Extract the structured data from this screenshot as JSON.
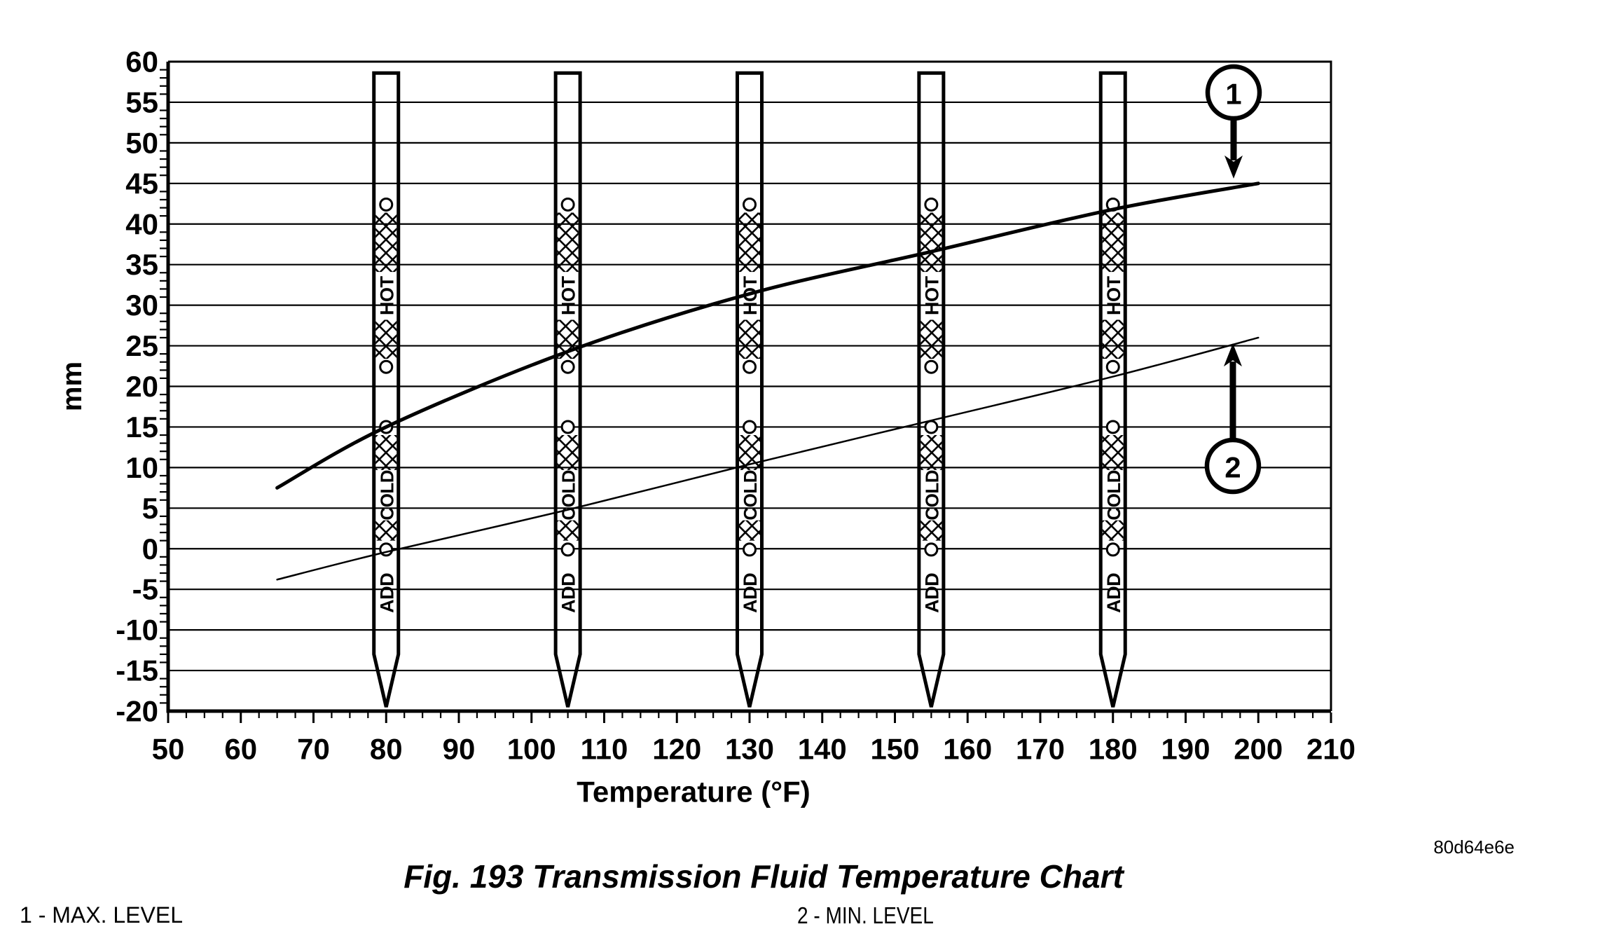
{
  "figure": {
    "caption": "Fig. 193 Transmission Fluid Temperature Chart",
    "reference_code": "80d64e6e",
    "legend": {
      "max_label": "1 - MAX. LEVEL",
      "min_label": "2 - MIN. LEVEL"
    }
  },
  "colors": {
    "ink": "#000000",
    "background": "#ffffff"
  },
  "chart_data": {
    "type": "line",
    "title": "Fig. 193 Transmission Fluid Temperature Chart",
    "xlabel": "Temperature (°F)",
    "ylabel": "mm",
    "xlim": [
      50,
      210
    ],
    "ylim": [
      -20,
      60
    ],
    "x_tick_step": 10,
    "x_minor_tick_step": 2.5,
    "y_tick_step": 5,
    "y_minor_tick_step": 1,
    "grid": "horizontal-only",
    "legend_position": "below",
    "x_tick_labels": [
      "50",
      "60",
      "70",
      "80",
      "90",
      "100",
      "110",
      "120",
      "130",
      "140",
      "150",
      "160",
      "170",
      "180",
      "190",
      "200",
      "210"
    ],
    "y_tick_labels": [
      "-20",
      "-15",
      "-10",
      "-5",
      "0",
      "5",
      "10",
      "15",
      "20",
      "25",
      "30",
      "35",
      "40",
      "45",
      "50",
      "55",
      "60"
    ],
    "series": [
      {
        "name": "MAX. LEVEL",
        "callout": "1",
        "style": "thick",
        "stroke_width": 5,
        "points": [
          [
            65,
            7.5
          ],
          [
            80,
            15
          ],
          [
            105,
            24.3
          ],
          [
            130,
            31.4
          ],
          [
            155,
            36.6
          ],
          [
            180,
            41.8
          ],
          [
            200,
            45
          ]
        ]
      },
      {
        "name": "MIN. LEVEL",
        "callout": "2",
        "style": "thin",
        "stroke_width": 2.5,
        "points": [
          [
            65,
            -3.8
          ],
          [
            80,
            -0.4
          ],
          [
            105,
            4.8
          ],
          [
            130,
            10.4
          ],
          [
            155,
            15.8
          ],
          [
            180,
            21.2
          ],
          [
            200,
            26
          ]
        ]
      }
    ],
    "callouts": [
      {
        "label": "1",
        "circle_at": [
          196.6,
          56.2
        ],
        "arrow_to": [
          196.6,
          45.6
        ],
        "direction": "down"
      },
      {
        "label": "2",
        "circle_at": [
          196.5,
          10.2
        ],
        "arrow_to": [
          196.5,
          25.3
        ],
        "direction": "up"
      }
    ],
    "dipsticks": {
      "temperatures_f": [
        80,
        105,
        130,
        155,
        180
      ],
      "zone_labels": {
        "hot": "HOT",
        "cold": "COLD",
        "add": "ADD"
      },
      "top_mm": 58.6,
      "hole_centers_mm": [
        42.4,
        22.4,
        15.0,
        -0.1
      ],
      "hatch_bands_mm": [
        [
          41.4,
          34.1
        ],
        [
          28.2,
          23.4
        ],
        [
          14.0,
          9.7
        ],
        [
          3.5,
          1.0
        ]
      ],
      "label_bands_mm": {
        "hot": [
          34.1,
          28.2
        ],
        "cold": [
          9.7,
          3.5
        ],
        "add": [
          -3.0,
          -7.9
        ]
      },
      "taper_start_mm": -13,
      "tip_mm": -19.5
    }
  }
}
